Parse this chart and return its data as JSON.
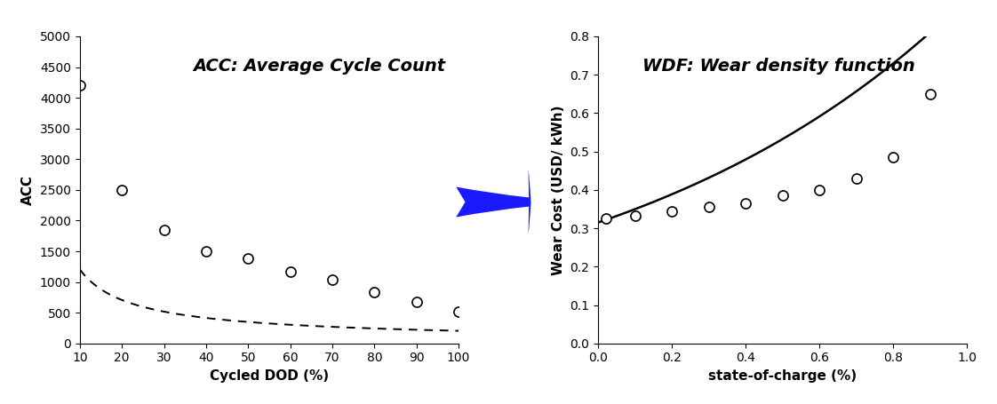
{
  "chart1": {
    "title": "ACC: Average Cycle Count",
    "xlabel": "Cycled DOD (%)",
    "ylabel": "ACC",
    "scatter_x": [
      10,
      20,
      30,
      40,
      50,
      60,
      70,
      80,
      90,
      100
    ],
    "scatter_y": [
      4200,
      2500,
      1850,
      1500,
      1380,
      1170,
      1040,
      840,
      680,
      520
    ],
    "curve_params": {
      "a": 7100,
      "b": -0.77
    },
    "xlim": [
      10,
      100
    ],
    "ylim": [
      0,
      5000
    ],
    "yticks": [
      0,
      500,
      1000,
      1500,
      2000,
      2500,
      3000,
      3500,
      4000,
      4500,
      5000
    ],
    "xticks": [
      10,
      20,
      30,
      40,
      50,
      60,
      70,
      80,
      90,
      100
    ]
  },
  "chart2": {
    "title": "WDF: Wear density function",
    "xlabel": "state-of-charge (%)",
    "ylabel": "Wear Cost (USD/ kWh)",
    "scatter_x": [
      0.02,
      0.1,
      0.2,
      0.3,
      0.4,
      0.5,
      0.6,
      0.7,
      0.8,
      0.9
    ],
    "scatter_y": [
      0.325,
      0.333,
      0.345,
      0.355,
      0.365,
      0.385,
      0.4,
      0.43,
      0.485,
      0.65
    ],
    "curve_params": {
      "a": 0.315,
      "b": 1.05
    },
    "xlim": [
      0,
      1.0
    ],
    "ylim": [
      0,
      0.8
    ],
    "yticks": [
      0,
      0.1,
      0.2,
      0.3,
      0.4,
      0.5,
      0.6,
      0.7,
      0.8
    ],
    "xticks": [
      0,
      0.2,
      0.4,
      0.6,
      0.8,
      1.0
    ]
  },
  "arrow_color": "#1a1aff",
  "background_color": "#ffffff",
  "marker_style": "o",
  "marker_facecolor": "white",
  "marker_edgecolor": "black",
  "marker_size": 8,
  "dashed_linecolor": "black",
  "solid_linecolor": "black",
  "title_fontsize": 14,
  "label_fontsize": 11,
  "tick_fontsize": 10
}
